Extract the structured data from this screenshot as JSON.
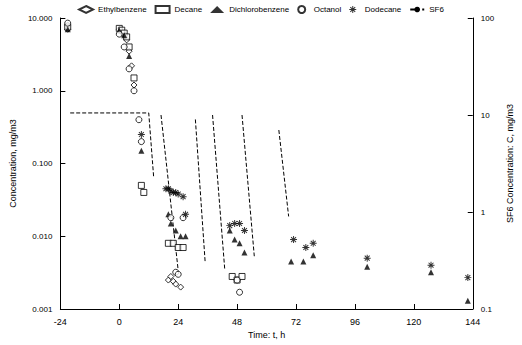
{
  "chart_data": {
    "type": "scatter",
    "x_label": "Time: t, h",
    "y_label": "Concentration, mg/m3",
    "y2_label": "SF6 Concentration: C, mg/m3",
    "log": "y",
    "grid": false,
    "legend": "top",
    "xlim": [
      -24,
      144
    ],
    "xticks": [
      -24,
      0,
      24,
      48,
      72,
      96,
      120,
      144
    ],
    "ylim": [
      0.001,
      10
    ],
    "yticks": [
      0.001,
      {
        "value": 0.01,
        "label": "0.010"
      },
      {
        "value": 0.1,
        "label": "0.100"
      },
      {
        "value": 1,
        "label": "1.000"
      },
      {
        "value": 10,
        "label": "10.000"
      }
    ],
    "y2lim": [
      0.1,
      100
    ],
    "y2ticks": [
      0.1,
      1,
      10,
      100
    ],
    "series": [
      {
        "name": "Ethylbenzene",
        "marker": "diamond",
        "color": "#000000",
        "x": [
          -21,
          -21,
          0,
          1,
          2,
          3,
          4,
          5,
          6,
          20,
          21,
          22,
          23,
          25
        ],
        "values": [
          8,
          7,
          7,
          6.5,
          6,
          5,
          3.5,
          2.2,
          1.2,
          0.0025,
          0.0028,
          0.0024,
          0.0022,
          0.002
        ]
      },
      {
        "name": "Decane",
        "marker": "square",
        "color": "#000000",
        "x": [
          -21,
          0,
          1,
          2,
          3,
          4,
          6,
          9,
          10,
          20,
          22,
          24,
          26,
          46,
          48,
          50
        ],
        "values": [
          7.5,
          7.2,
          6.8,
          6.2,
          5.5,
          4,
          1.5,
          0.05,
          0.04,
          0.008,
          0.008,
          0.007,
          0.007,
          0.0028,
          0.0025,
          0.0028
        ]
      },
      {
        "name": "Dichlorobenzene",
        "marker": "triangle",
        "color": "#000000",
        "x": [
          -21,
          0,
          2,
          4,
          9,
          20,
          21,
          23,
          25,
          27,
          45,
          47,
          49,
          51,
          70,
          75,
          79,
          101,
          127,
          142
        ],
        "values": [
          7,
          6.8,
          5.8,
          3,
          0.15,
          0.02,
          0.015,
          0.012,
          0.01,
          0.01,
          0.012,
          0.009,
          0.008,
          0.006,
          0.0045,
          0.0045,
          0.0055,
          0.0038,
          0.0032,
          0.0013
        ]
      },
      {
        "name": "Octanol",
        "marker": "circle",
        "color": "#000000",
        "x": [
          -21,
          0,
          2,
          4,
          6,
          8,
          9,
          21,
          23,
          24,
          26,
          48,
          49
        ],
        "values": [
          8.5,
          6,
          4,
          2,
          1,
          0.4,
          0.2,
          0.018,
          0.0032,
          0.003,
          0.018,
          0.0025,
          0.0017
        ]
      },
      {
        "name": "Dodecane",
        "marker": "star",
        "color": "#000000",
        "x": [
          9,
          19,
          20,
          21,
          22,
          23,
          24,
          26,
          27,
          45,
          47,
          49,
          51,
          71,
          76,
          79,
          101,
          127,
          142
        ],
        "values": [
          0.25,
          0.045,
          0.045,
          0.042,
          0.04,
          0.04,
          0.038,
          0.035,
          0.02,
          0.014,
          0.015,
          0.015,
          0.012,
          0.009,
          0.007,
          0.008,
          0.005,
          0.004,
          0.0027
        ]
      },
      {
        "name": "SF6",
        "type": "line",
        "line_style": "dashed",
        "axis": "y2",
        "color": "#000000",
        "x": [
          -20,
          12,
          14,
          15,
          17,
          24,
          26,
          31,
          35,
          36,
          38,
          43,
          45,
          50,
          55,
          60,
          65,
          69
        ],
        "values": [
          10.5,
          10.5,
          2.3,
          null,
          10,
          0.25,
          null,
          9,
          0.3,
          null,
          10,
          0.25,
          null,
          10,
          0.35,
          null,
          7,
          0.9
        ]
      }
    ]
  }
}
